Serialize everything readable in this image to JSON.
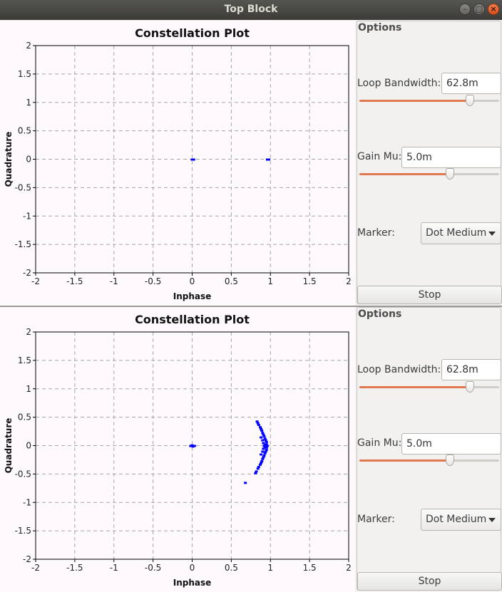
{
  "window": {
    "title": "Top Block"
  },
  "panels": [
    {
      "plot": {
        "title": "Constellation Plot",
        "xlabel": "Inphase",
        "ylabel": "Quadrature",
        "xticks": [
          "-2",
          "-1.5",
          "-1",
          "-0.5",
          "0",
          "0.5",
          "1",
          "1.5",
          "2"
        ],
        "yticks": [
          "2",
          "1.5",
          "1",
          "0.5",
          "0",
          "-0.5",
          "-1",
          "-1.5",
          "-2"
        ]
      },
      "options": {
        "title": "Options",
        "loop_bandwidth_label": "Loop Bandwidth:",
        "loop_bandwidth_value": "62.8m",
        "loop_bandwidth_position": 0.79,
        "gain_mu_label": "Gain Mu:",
        "gain_mu_value": "5.0m",
        "gain_mu_position": 0.65,
        "marker_label": "Marker:",
        "marker_value": "Dot Medium",
        "stop_label": "Stop"
      }
    },
    {
      "plot": {
        "title": "Constellation Plot",
        "xlabel": "Inphase",
        "ylabel": "Quadrature",
        "xticks": [
          "-2",
          "-1.5",
          "-1",
          "-0.5",
          "0",
          "0.5",
          "1",
          "1.5",
          "2"
        ],
        "yticks": [
          "2",
          "1.5",
          "1",
          "0.5",
          "0",
          "-0.5",
          "-1",
          "-1.5",
          "-2"
        ]
      },
      "options": {
        "title": "Options",
        "loop_bandwidth_label": "Loop Bandwidth:",
        "loop_bandwidth_value": "62.8m",
        "loop_bandwidth_position": 0.79,
        "gain_mu_label": "Gain Mu:",
        "gain_mu_value": "5.0m",
        "gain_mu_position": 0.65,
        "marker_label": "Marker:",
        "marker_value": "Dot Medium",
        "stop_label": "Stop"
      }
    }
  ],
  "chart_data": [
    {
      "type": "scatter",
      "title": "Constellation Plot",
      "xlabel": "Inphase",
      "ylabel": "Quadrature",
      "xlim": [
        -2,
        2
      ],
      "ylim": [
        -2,
        2
      ],
      "grid": true,
      "color": "#0000ff",
      "points": [
        {
          "x": 0.0,
          "y": 0.0
        },
        {
          "x": 0.01,
          "y": 0.0
        },
        {
          "x": 0.02,
          "y": 0.0
        },
        {
          "x": 0.96,
          "y": 0.0
        },
        {
          "x": 0.97,
          "y": 0.0
        },
        {
          "x": 0.98,
          "y": 0.0
        }
      ]
    },
    {
      "type": "scatter",
      "title": "Constellation Plot",
      "xlabel": "Inphase",
      "ylabel": "Quadrature",
      "xlim": [
        -2,
        2
      ],
      "ylim": [
        -2,
        2
      ],
      "grid": true,
      "color": "#0000ff",
      "points": [
        {
          "x": -0.02,
          "y": 0.0
        },
        {
          "x": 0.0,
          "y": 0.01
        },
        {
          "x": 0.01,
          "y": -0.01
        },
        {
          "x": 0.02,
          "y": 0.0
        },
        {
          "x": 0.03,
          "y": 0.0
        },
        {
          "x": 0.83,
          "y": 0.43
        },
        {
          "x": 0.84,
          "y": 0.4
        },
        {
          "x": 0.85,
          "y": 0.37
        },
        {
          "x": 0.87,
          "y": 0.33
        },
        {
          "x": 0.88,
          "y": 0.3
        },
        {
          "x": 0.89,
          "y": 0.27
        },
        {
          "x": 0.9,
          "y": 0.23
        },
        {
          "x": 0.91,
          "y": 0.2
        },
        {
          "x": 0.92,
          "y": 0.17
        },
        {
          "x": 0.93,
          "y": 0.13
        },
        {
          "x": 0.94,
          "y": 0.1
        },
        {
          "x": 0.95,
          "y": 0.07
        },
        {
          "x": 0.95,
          "y": 0.03
        },
        {
          "x": 0.96,
          "y": 0.0
        },
        {
          "x": 0.95,
          "y": -0.03
        },
        {
          "x": 0.95,
          "y": -0.07
        },
        {
          "x": 0.94,
          "y": -0.1
        },
        {
          "x": 0.93,
          "y": -0.13
        },
        {
          "x": 0.92,
          "y": -0.17
        },
        {
          "x": 0.91,
          "y": -0.2
        },
        {
          "x": 0.9,
          "y": -0.23
        },
        {
          "x": 0.89,
          "y": -0.27
        },
        {
          "x": 0.88,
          "y": -0.3
        },
        {
          "x": 0.87,
          "y": -0.33
        },
        {
          "x": 0.85,
          "y": -0.37
        },
        {
          "x": 0.84,
          "y": -0.4
        },
        {
          "x": 0.82,
          "y": -0.45
        },
        {
          "x": 0.81,
          "y": -0.48
        },
        {
          "x": 0.9,
          "y": 0.1
        },
        {
          "x": 0.91,
          "y": 0.05
        },
        {
          "x": 0.92,
          "y": 0.0
        },
        {
          "x": 0.91,
          "y": -0.05
        },
        {
          "x": 0.9,
          "y": -0.1
        },
        {
          "x": 0.88,
          "y": 0.15
        },
        {
          "x": 0.88,
          "y": -0.15
        },
        {
          "x": 0.93,
          "y": 0.02
        },
        {
          "x": 0.93,
          "y": -0.02
        },
        {
          "x": 0.68,
          "y": -0.65
        }
      ]
    }
  ]
}
